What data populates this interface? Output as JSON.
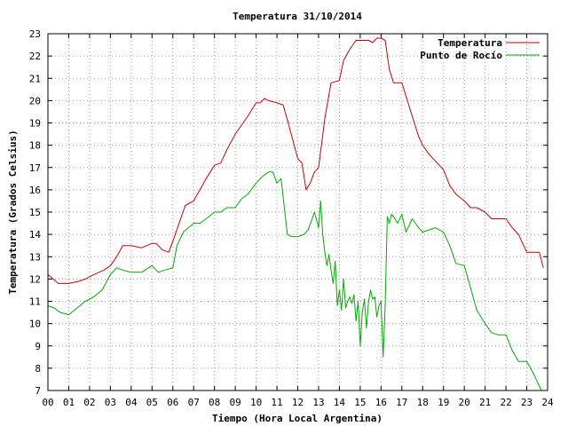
{
  "chart_data": {
    "type": "line",
    "title": "Temperatura 31/10/2014",
    "xlabel": "Tiempo (Hora Local Argentina)",
    "ylabel": "Temperatura (Grados Celsius)",
    "xlim": [
      0,
      24
    ],
    "ylim": [
      7,
      23
    ],
    "x_ticks": [
      "00",
      "01",
      "02",
      "03",
      "04",
      "05",
      "06",
      "07",
      "08",
      "09",
      "10",
      "11",
      "12",
      "13",
      "14",
      "15",
      "16",
      "17",
      "18",
      "19",
      "20",
      "21",
      "22",
      "23",
      "24"
    ],
    "y_ticks": [
      7,
      8,
      9,
      10,
      11,
      12,
      13,
      14,
      15,
      16,
      17,
      18,
      19,
      20,
      21,
      22,
      23
    ],
    "grid": true,
    "legend_position": "top-right",
    "series": [
      {
        "name": "Temperatura",
        "color": "#cc0000",
        "x": [
          0,
          0.25,
          0.5,
          1,
          1.5,
          1.8,
          2.2,
          2.7,
          3.0,
          3.3,
          3.6,
          4.0,
          4.5,
          5.0,
          5.2,
          5.5,
          5.8,
          6.0,
          6.3,
          6.6,
          7.0,
          7.3,
          7.6,
          8.0,
          8.3,
          8.6,
          9.0,
          9.3,
          9.6,
          10.0,
          10.2,
          10.4,
          10.6,
          11.0,
          11.3,
          11.6,
          12.0,
          12.2,
          12.4,
          12.6,
          12.8,
          13.0,
          13.3,
          13.6,
          14.0,
          14.2,
          14.5,
          14.8,
          15.0,
          15.2,
          15.4,
          15.6,
          15.8,
          16.0,
          16.2,
          16.4,
          16.6,
          16.8,
          17.0,
          17.2,
          17.5,
          17.8,
          18.0,
          18.3,
          18.6,
          19.0,
          19.3,
          19.6,
          20.0,
          20.3,
          20.6,
          21.0,
          21.3,
          21.6,
          22.0,
          22.3,
          22.6,
          23.0,
          23.3,
          23.6
        ],
        "y": [
          12.2,
          12.0,
          11.8,
          11.8,
          11.9,
          12.0,
          12.2,
          12.4,
          12.6,
          13.0,
          13.5,
          13.5,
          13.4,
          13.6,
          13.6,
          13.3,
          13.2,
          13.7,
          14.5,
          15.3,
          15.5,
          16.0,
          16.5,
          17.1,
          17.2,
          17.8,
          18.5,
          18.9,
          19.3,
          19.9,
          19.9,
          20.1,
          20.0,
          19.9,
          19.8,
          18.8,
          17.4,
          17.2,
          16.0,
          16.3,
          16.8,
          17.0,
          19.2,
          20.8,
          20.9,
          21.8,
          22.3,
          22.7,
          22.7,
          22.7,
          22.7,
          22.6,
          22.8,
          22.8,
          22.7,
          21.4,
          20.8,
          20.8,
          20.8,
          20.2,
          19.3,
          18.4,
          18.0,
          17.6,
          17.3,
          16.9,
          16.2,
          15.8,
          15.5,
          15.2,
          15.2,
          15.0,
          14.7,
          14.7,
          14.7,
          14.3,
          14.0,
          13.2,
          13.2,
          13.2
        ],
        "x_end": 23.8,
        "y_end": 12.5
      },
      {
        "name": "Punto de Rocío",
        "color": "#00aa00",
        "x": [
          0,
          0.3,
          0.6,
          1.0,
          1.4,
          1.8,
          2.2,
          2.6,
          3.0,
          3.3,
          3.6,
          4.0,
          4.5,
          5.0,
          5.3,
          5.6,
          6.0,
          6.2,
          6.5,
          7.0,
          7.3,
          7.6,
          8.0,
          8.3,
          8.6,
          9.0,
          9.3,
          9.6,
          10.0,
          10.3,
          10.6,
          10.8,
          11.0,
          11.2,
          11.5,
          11.7,
          12.0,
          12.3,
          12.5,
          12.8,
          13.0,
          13.1,
          13.2,
          13.3,
          13.4,
          13.5,
          13.6,
          13.7,
          13.8,
          13.9,
          14.0,
          14.1,
          14.2,
          14.3,
          14.4,
          14.5,
          14.6,
          14.7,
          14.8,
          14.9,
          15.0,
          15.1,
          15.2,
          15.3,
          15.4,
          15.5,
          15.6,
          15.7,
          15.8,
          15.9,
          16.0,
          16.1,
          16.2,
          16.3,
          16.4,
          16.5,
          16.6,
          16.8,
          17.0,
          17.2,
          17.5,
          17.8,
          18.0,
          18.3,
          18.6,
          19.0,
          19.3,
          19.6,
          20.0,
          20.3,
          20.6,
          21.0,
          21.3,
          21.6,
          22.0,
          22.3,
          22.6,
          23.0,
          23.3
        ],
        "y": [
          10.8,
          10.7,
          10.5,
          10.4,
          10.7,
          11.0,
          11.2,
          11.5,
          12.2,
          12.5,
          12.4,
          12.3,
          12.3,
          12.6,
          12.3,
          12.4,
          12.5,
          13.5,
          14.1,
          14.5,
          14.5,
          14.7,
          15.0,
          15.0,
          15.2,
          15.2,
          15.6,
          15.8,
          16.3,
          16.6,
          16.8,
          16.8,
          16.3,
          16.5,
          14.0,
          13.9,
          13.9,
          14.0,
          14.2,
          15.0,
          14.3,
          15.5,
          14.0,
          13.2,
          12.6,
          13.1,
          12.4,
          11.8,
          12.8,
          10.8,
          11.5,
          10.6,
          12.0,
          10.7,
          11.0,
          11.2,
          10.9,
          11.3,
          10.1,
          11.0,
          9.0,
          10.5,
          11.1,
          9.8,
          11.0,
          11.5,
          11.1,
          11.2,
          10.3,
          10.8,
          11.0,
          8.5,
          10.8,
          14.8,
          14.5,
          14.9,
          14.8,
          14.5,
          14.9,
          14.1,
          14.7,
          14.3,
          14.1,
          14.2,
          14.3,
          14.1,
          13.5,
          12.7,
          12.6,
          11.6,
          10.6,
          10.0,
          9.6,
          9.5,
          9.5,
          8.8,
          8.3,
          8.3,
          7.8
        ],
        "x_end": 23.7,
        "y_end": 7.0
      }
    ]
  }
}
